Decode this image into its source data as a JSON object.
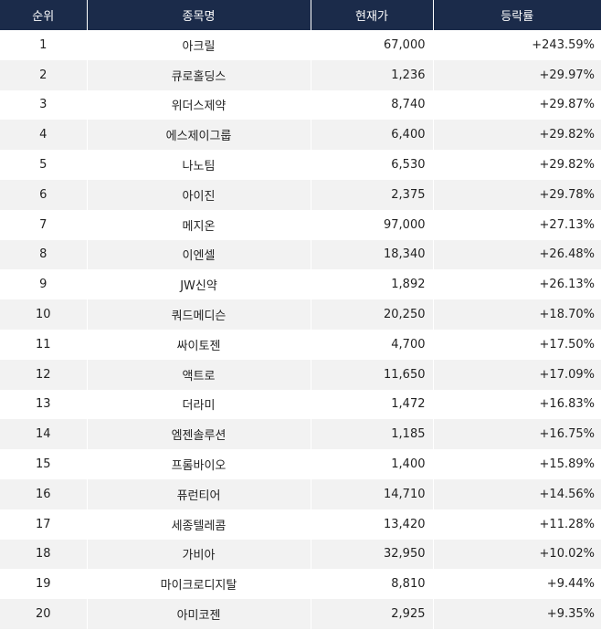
{
  "header": {
    "rank": "순위",
    "name": "종목명",
    "price": "현재가",
    "change": "등락률"
  },
  "rows": [
    {
      "rank": "1",
      "name": "아크릴",
      "price": "67,000",
      "change": "+243.59%"
    },
    {
      "rank": "2",
      "name": "큐로홀딩스",
      "price": "1,236",
      "change": "+29.97%"
    },
    {
      "rank": "3",
      "name": "위더스제약",
      "price": "8,740",
      "change": "+29.87%"
    },
    {
      "rank": "4",
      "name": "에스제이그룹",
      "price": "6,400",
      "change": "+29.82%"
    },
    {
      "rank": "5",
      "name": "나노팀",
      "price": "6,530",
      "change": "+29.82%"
    },
    {
      "rank": "6",
      "name": "아이진",
      "price": "2,375",
      "change": "+29.78%"
    },
    {
      "rank": "7",
      "name": "메지온",
      "price": "97,000",
      "change": "+27.13%"
    },
    {
      "rank": "8",
      "name": "이엔셀",
      "price": "18,340",
      "change": "+26.48%"
    },
    {
      "rank": "9",
      "name": "JW신약",
      "price": "1,892",
      "change": "+26.13%"
    },
    {
      "rank": "10",
      "name": "쿼드메디슨",
      "price": "20,250",
      "change": "+18.70%"
    },
    {
      "rank": "11",
      "name": "싸이토젠",
      "price": "4,700",
      "change": "+17.50%"
    },
    {
      "rank": "12",
      "name": "액트로",
      "price": "11,650",
      "change": "+17.09%"
    },
    {
      "rank": "13",
      "name": "더라미",
      "price": "1,472",
      "change": "+16.83%"
    },
    {
      "rank": "14",
      "name": "엠젠솔루션",
      "price": "1,185",
      "change": "+16.75%"
    },
    {
      "rank": "15",
      "name": "프롬바이오",
      "price": "1,400",
      "change": "+15.89%"
    },
    {
      "rank": "16",
      "name": "퓨런티어",
      "price": "14,710",
      "change": "+14.56%"
    },
    {
      "rank": "17",
      "name": "세종텔레콤",
      "price": "13,420",
      "change": "+11.28%"
    },
    {
      "rank": "18",
      "name": "가비아",
      "price": "32,950",
      "change": "+10.02%"
    },
    {
      "rank": "19",
      "name": "마이크로디지탈",
      "price": "8,810",
      "change": "+9.44%"
    },
    {
      "rank": "20",
      "name": "아미코젠",
      "price": "2,925",
      "change": "+9.35%"
    }
  ],
  "colors": {
    "header_bg": "#1b2b4a",
    "header_text": "#ffffff",
    "row_alt_bg": "#f2f2f2"
  }
}
